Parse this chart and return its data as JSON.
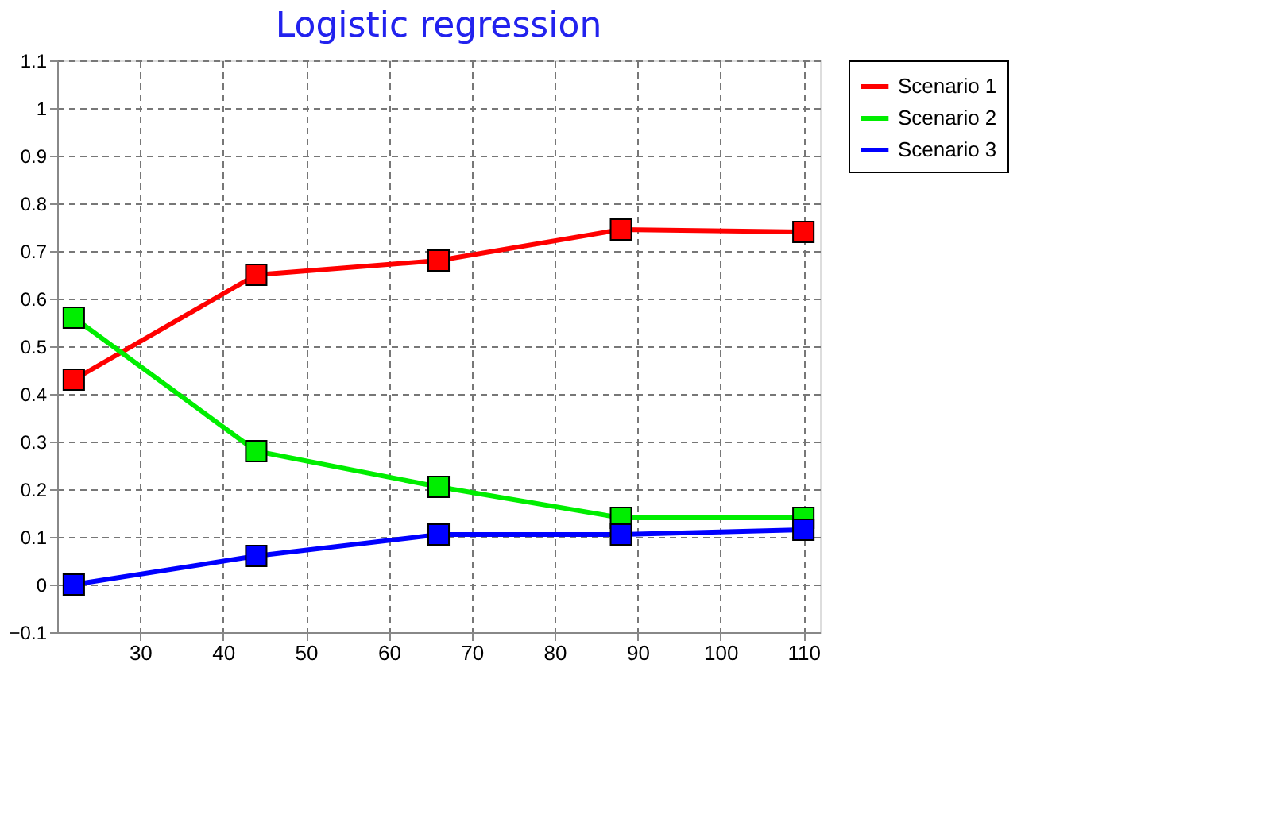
{
  "chart_data": {
    "type": "line",
    "title": "Logistic regression",
    "x": [
      22,
      44,
      66,
      88,
      110
    ],
    "series": [
      {
        "name": "Scenario 1",
        "color": "#ff0000",
        "values": [
          0.43,
          0.65,
          0.68,
          0.745,
          0.74
        ]
      },
      {
        "name": "Scenario 2",
        "color": "#00ee00",
        "values": [
          0.56,
          0.28,
          0.205,
          0.14,
          0.14
        ]
      },
      {
        "name": "Scenario 3",
        "color": "#0000ff",
        "values": [
          0.0,
          0.06,
          0.105,
          0.105,
          0.115
        ]
      }
    ],
    "xlim": [
      20,
      112
    ],
    "xticks": [
      30,
      40,
      50,
      60,
      70,
      80,
      90,
      100,
      110
    ],
    "ylim": [
      -0.1,
      1.1
    ],
    "yticks": [
      -0.1,
      0,
      0.1,
      0.2,
      0.3,
      0.4,
      0.5,
      0.6,
      0.7,
      0.8,
      0.9,
      1,
      1.1
    ],
    "grid": true,
    "legend": "top right",
    "marker": "square",
    "line_style": "solid"
  }
}
